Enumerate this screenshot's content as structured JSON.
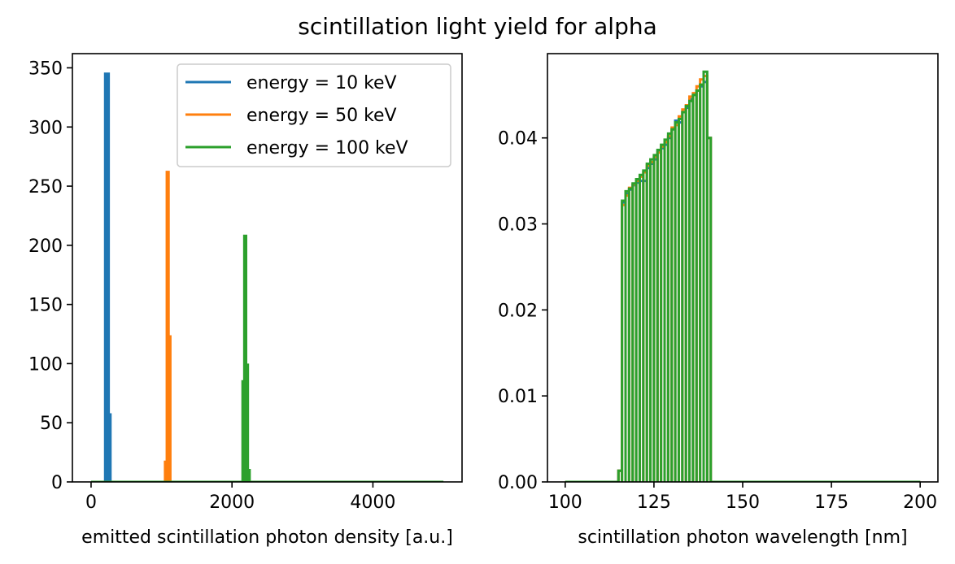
{
  "figure": {
    "suptitle": "scintillation light yield for alpha"
  },
  "chart_data": [
    {
      "type": "histogram",
      "xlabel": "emitted scintillation photon density [a.u.]",
      "ylabel": "",
      "xlim": [
        -265,
        5265
      ],
      "ylim": [
        0,
        362
      ],
      "xticks": [
        0,
        2000,
        4000
      ],
      "xtick_labels": [
        "0",
        "2000",
        "4000"
      ],
      "yticks": [
        0,
        50,
        100,
        150,
        200,
        250,
        300,
        350
      ],
      "ytick_labels": [
        "0",
        "50",
        "100",
        "150",
        "200",
        "250",
        "300",
        "350"
      ],
      "grid": false,
      "legend": {
        "placement": "upper right",
        "entries": [
          "energy = 10 keV",
          "energy = 50 keV",
          "energy = 100 keV"
        ]
      },
      "range": [
        0,
        5000
      ],
      "series": [
        {
          "name": "energy = 10 keV",
          "color": "#1f77b4",
          "bins": [
            [
              200,
              225,
              345
            ],
            [
              225,
              250,
              345
            ],
            [
              250,
              275,
              57
            ]
          ]
        },
        {
          "name": "energy = 50 keV",
          "color": "#ff7f0e",
          "bins": [
            [
              1050,
              1075,
              17
            ],
            [
              1075,
              1100,
              262
            ],
            [
              1100,
              1125,
              123
            ]
          ]
        },
        {
          "name": "energy = 100 keV",
          "color": "#2ca02c",
          "bins": [
            [
              2150,
              2175,
              85
            ],
            [
              2175,
              2200,
              208
            ],
            [
              2200,
              2225,
              99
            ],
            [
              2225,
              2250,
              10
            ]
          ]
        }
      ]
    },
    {
      "type": "histogram",
      "xlabel": "scintillation photon wavelength [nm]",
      "ylabel": "",
      "xlim": [
        95,
        205
      ],
      "ylim": [
        0,
        0.0498
      ],
      "xticks": [
        100,
        125,
        150,
        175,
        200
      ],
      "xtick_labels": [
        "100",
        "125",
        "150",
        "175",
        "200"
      ],
      "yticks": [
        0,
        0.01,
        0.02,
        0.03,
        0.04
      ],
      "ytick_labels": [
        "0.00",
        "0.01",
        "0.02",
        "0.03",
        "0.04"
      ],
      "grid": false,
      "range": [
        100,
        200
      ],
      "bin_width": 1,
      "series": [
        {
          "name": "energy = 10 keV",
          "color": "#1f77b4",
          "values": [
            0,
            0,
            0,
            0,
            0,
            0,
            0,
            0,
            0,
            0,
            0,
            0,
            0,
            0,
            0,
            0.0013,
            0.0325,
            0.0335,
            0.034,
            0.0345,
            0.0348,
            0.035,
            0.035,
            0.0365,
            0.037,
            0.0375,
            0.0385,
            0.0388,
            0.0392,
            0.04,
            0.041,
            0.042,
            0.0418,
            0.043,
            0.0435,
            0.0445,
            0.045,
            0.0455,
            0.046,
            0.0465,
            0.04,
            0,
            0,
            0,
            0,
            0,
            0,
            0,
            0,
            0,
            0,
            0,
            0,
            0,
            0,
            0,
            0,
            0,
            0,
            0,
            0,
            0,
            0,
            0,
            0,
            0,
            0,
            0,
            0,
            0,
            0,
            0,
            0,
            0,
            0,
            0,
            0,
            0,
            0,
            0,
            0,
            0,
            0,
            0,
            0,
            0,
            0,
            0,
            0,
            0,
            0,
            0,
            0,
            0,
            0,
            0,
            0,
            0,
            0,
            0
          ]
        },
        {
          "name": "energy = 50 keV",
          "color": "#ff7f0e",
          "values": [
            0,
            0,
            0,
            0,
            0,
            0,
            0,
            0,
            0,
            0,
            0,
            0,
            0,
            0,
            0,
            0.0013,
            0.0322,
            0.0333,
            0.0342,
            0.0346,
            0.035,
            0.0355,
            0.036,
            0.0368,
            0.0372,
            0.0378,
            0.0383,
            0.039,
            0.0395,
            0.0402,
            0.0412,
            0.0415,
            0.0425,
            0.0433,
            0.0438,
            0.0448,
            0.0452,
            0.046,
            0.0468,
            0.0472,
            0.04,
            0,
            0,
            0,
            0,
            0,
            0,
            0,
            0,
            0,
            0,
            0,
            0,
            0,
            0,
            0,
            0,
            0,
            0,
            0,
            0,
            0,
            0,
            0,
            0,
            0,
            0,
            0,
            0,
            0,
            0,
            0,
            0,
            0,
            0,
            0,
            0,
            0,
            0,
            0,
            0,
            0,
            0,
            0,
            0,
            0,
            0,
            0,
            0,
            0,
            0,
            0,
            0,
            0,
            0,
            0,
            0,
            0,
            0,
            0
          ]
        },
        {
          "name": "energy = 100 keV",
          "color": "#2ca02c",
          "values": [
            0,
            0,
            0,
            0,
            0,
            0,
            0,
            0,
            0,
            0,
            0,
            0,
            0,
            0,
            0,
            0.0013,
            0.0327,
            0.0338,
            0.0341,
            0.0347,
            0.0352,
            0.0357,
            0.0362,
            0.037,
            0.0375,
            0.038,
            0.0386,
            0.0392,
            0.0398,
            0.0405,
            0.041,
            0.0418,
            0.0422,
            0.043,
            0.0437,
            0.0443,
            0.045,
            0.0455,
            0.0462,
            0.0477,
            0.04,
            0,
            0,
            0,
            0,
            0,
            0,
            0,
            0,
            0,
            0,
            0,
            0,
            0,
            0,
            0,
            0,
            0,
            0,
            0,
            0,
            0,
            0,
            0,
            0,
            0,
            0,
            0,
            0,
            0,
            0,
            0,
            0,
            0,
            0,
            0,
            0,
            0,
            0,
            0,
            0,
            0,
            0,
            0,
            0,
            0,
            0,
            0,
            0,
            0,
            0,
            0,
            0,
            0,
            0,
            0,
            0,
            0,
            0,
            0
          ]
        }
      ]
    }
  ]
}
